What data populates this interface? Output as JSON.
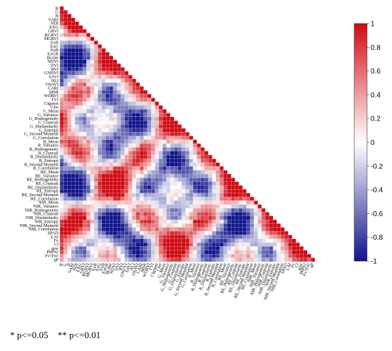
{
  "chart_data": {
    "type": "heatmap",
    "variables": [
      "R",
      "G",
      "B",
      "VARI",
      "NDI",
      "EXG",
      "GRVI",
      "RGBVI",
      "MGRVI",
      "ExR",
      "ExG",
      "ExB",
      "ExGR",
      "IKAW",
      "NDVI",
      "DVI",
      "RVI",
      "GNDVI",
      "SAVI",
      "NLI",
      "OSAVI",
      "CARI",
      "MSR",
      "WDRVI",
      "TVI",
      "CIgreen",
      "CIre",
      "G_Mean",
      "G_Variance",
      "G_Homogeneity",
      "G_Contrast",
      "G_Dissimilarity",
      "G_Entropy",
      "G_Second Moment",
      "G_Correlation",
      "R_Mean",
      "R_Variance",
      "R_Homogeneity",
      "R_Contrast",
      "R_Dissimilarity",
      "R_Entropy",
      "R_Second Moment",
      "R_Correlation",
      "RE_Mean",
      "RE_Variance",
      "RE_Homogeneity",
      "RE_Contrast",
      "RE_Dissimilarity",
      "RE_Entropy",
      "RE_Second Moment",
      "RE_Correlation",
      "NIR_Mean",
      "NIR_Variance",
      "NIR_Homogeneity",
      "NIR_Contrast",
      "NIR_Dissimilarity",
      "NIR_Entropy",
      "NIR_Second Moment",
      "NIR_Correlation",
      "SPAD",
      "LAI",
      "Fv",
      "Cl",
      "gsw",
      "PhPS2",
      "Fv'/Fm'",
      "qP"
    ],
    "layout": "lower-triangle",
    "colorscale": {
      "min": -1,
      "max": 1,
      "ticks": [
        "1",
        "0.8",
        "0.6",
        "0.4",
        "0.2",
        "0",
        "-0.2",
        "-0.4",
        "-0.6",
        "-0.8",
        "-1"
      ],
      "colors": {
        "negative": "#10148c",
        "zero": "#ffffff",
        "positive": "#d10a12"
      }
    },
    "values": [],
    "significance": [],
    "legend_notes": [
      "* p<=0.05",
      "** p<=0.01"
    ]
  }
}
